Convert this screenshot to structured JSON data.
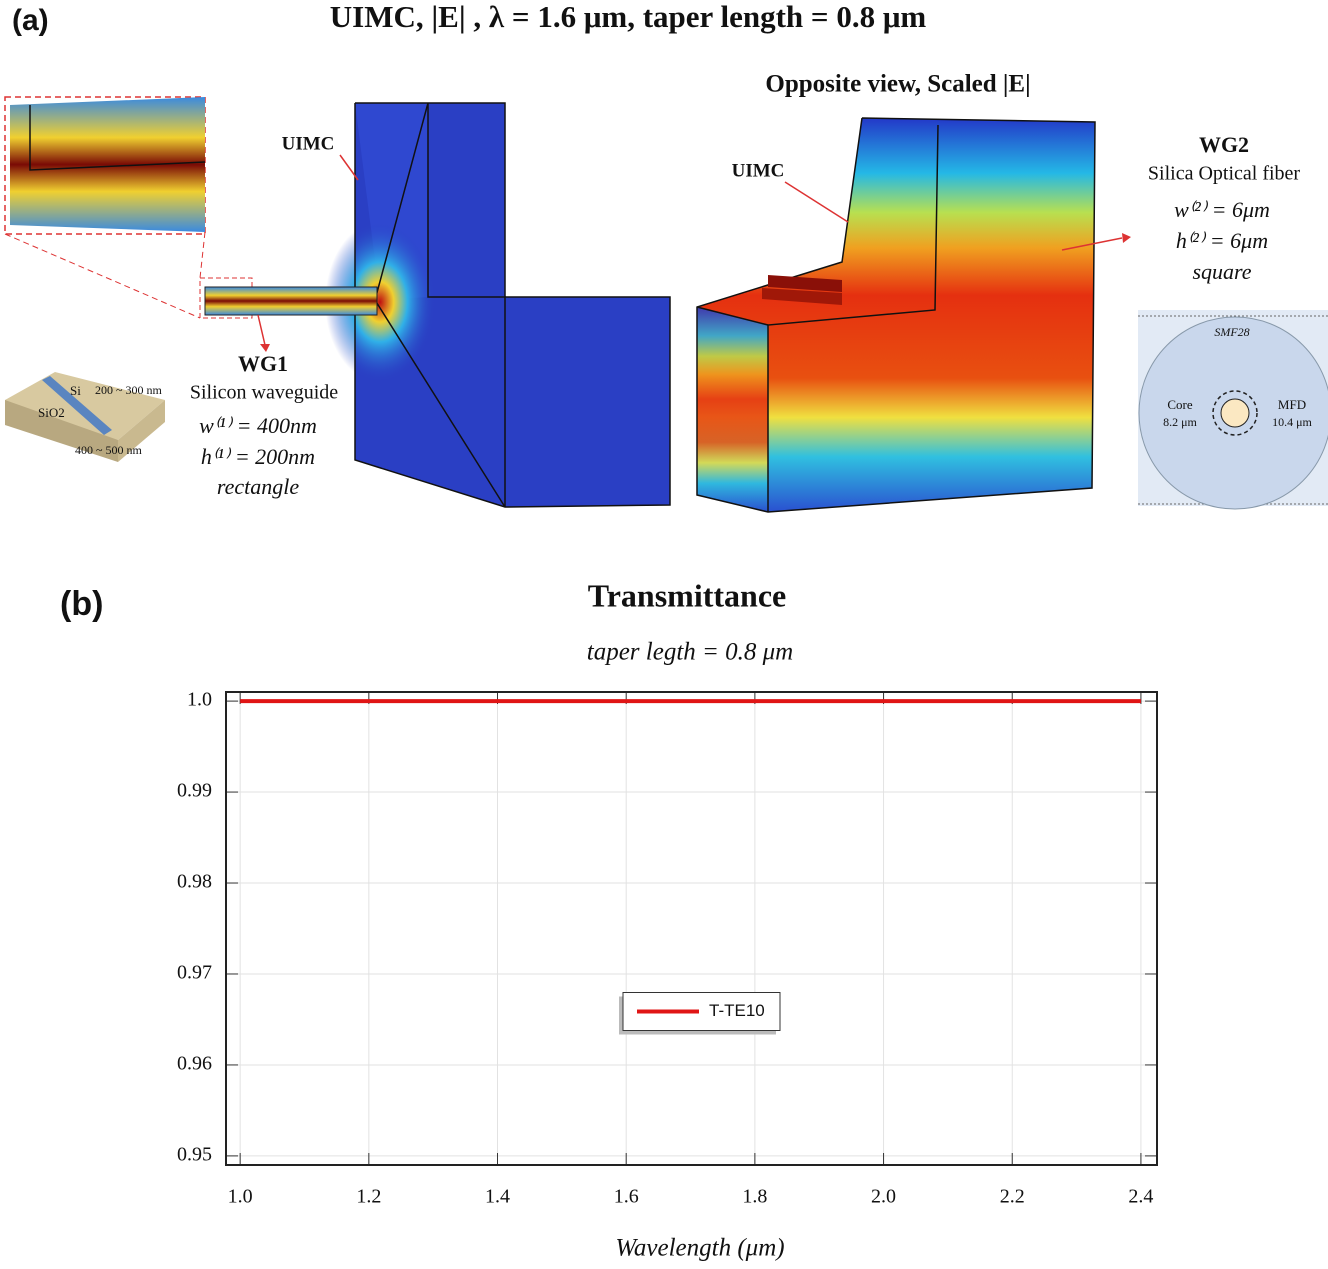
{
  "panel_a": {
    "label": "(a)",
    "title": "UIMC, |E| ,  λ = 1.6 μm,  taper length = 0.8 μm",
    "opposite_title": "Opposite view, Scaled |E|",
    "uimc_left": "UIMC",
    "uimc_right": "UIMC",
    "wg1": {
      "name": "WG1",
      "desc": "Silicon waveguide",
      "w": "w⁽¹⁾ = 400nm",
      "h": "h⁽¹⁾ = 200nm",
      "shape": "rectangle"
    },
    "wg2": {
      "name": "WG2",
      "desc": "Silica Optical fiber",
      "w": "w⁽²⁾ = 6μm",
      "h": "h⁽²⁾ = 6μm",
      "shape": "square"
    },
    "soi_inset": {
      "si": "Si",
      "sio2": "SiO2",
      "height": "200 ~ 300 nm",
      "width": "400 ~ 500 nm"
    },
    "fiber_inset": {
      "name": "SMF28",
      "core": "Core",
      "core_size": "8.2 μm",
      "mfd": "MFD",
      "mfd_size": "10.4 μm"
    }
  },
  "chart_data": {
    "type": "line",
    "panel_label": "(b)",
    "title": "Transmittance",
    "subtitle": "taper legth = 0.8 μm",
    "x_label": "Wavelength (μm)",
    "x": [
      1.0,
      1.2,
      1.4,
      1.6,
      1.8,
      2.0,
      2.2,
      2.4
    ],
    "series": [
      {
        "name": "T-TE10",
        "color": "#e01515",
        "values": [
          1.0,
          1.0,
          1.0,
          1.0,
          1.0,
          1.0,
          1.0,
          1.0
        ]
      }
    ],
    "xlim": [
      0.978,
      2.425
    ],
    "ylim": [
      0.949,
      1.001
    ],
    "xticks": [
      {
        "value": 1,
        "label": "1.0"
      },
      1.2,
      1.4,
      1.6,
      1.8,
      {
        "value": 2,
        "label": "2.0"
      },
      2.2,
      2.4
    ],
    "yticks": [
      0.95,
      0.96,
      0.97,
      0.98,
      0.99,
      {
        "value": 1,
        "label": "1.0"
      }
    ],
    "grid": true,
    "legend": "center"
  }
}
